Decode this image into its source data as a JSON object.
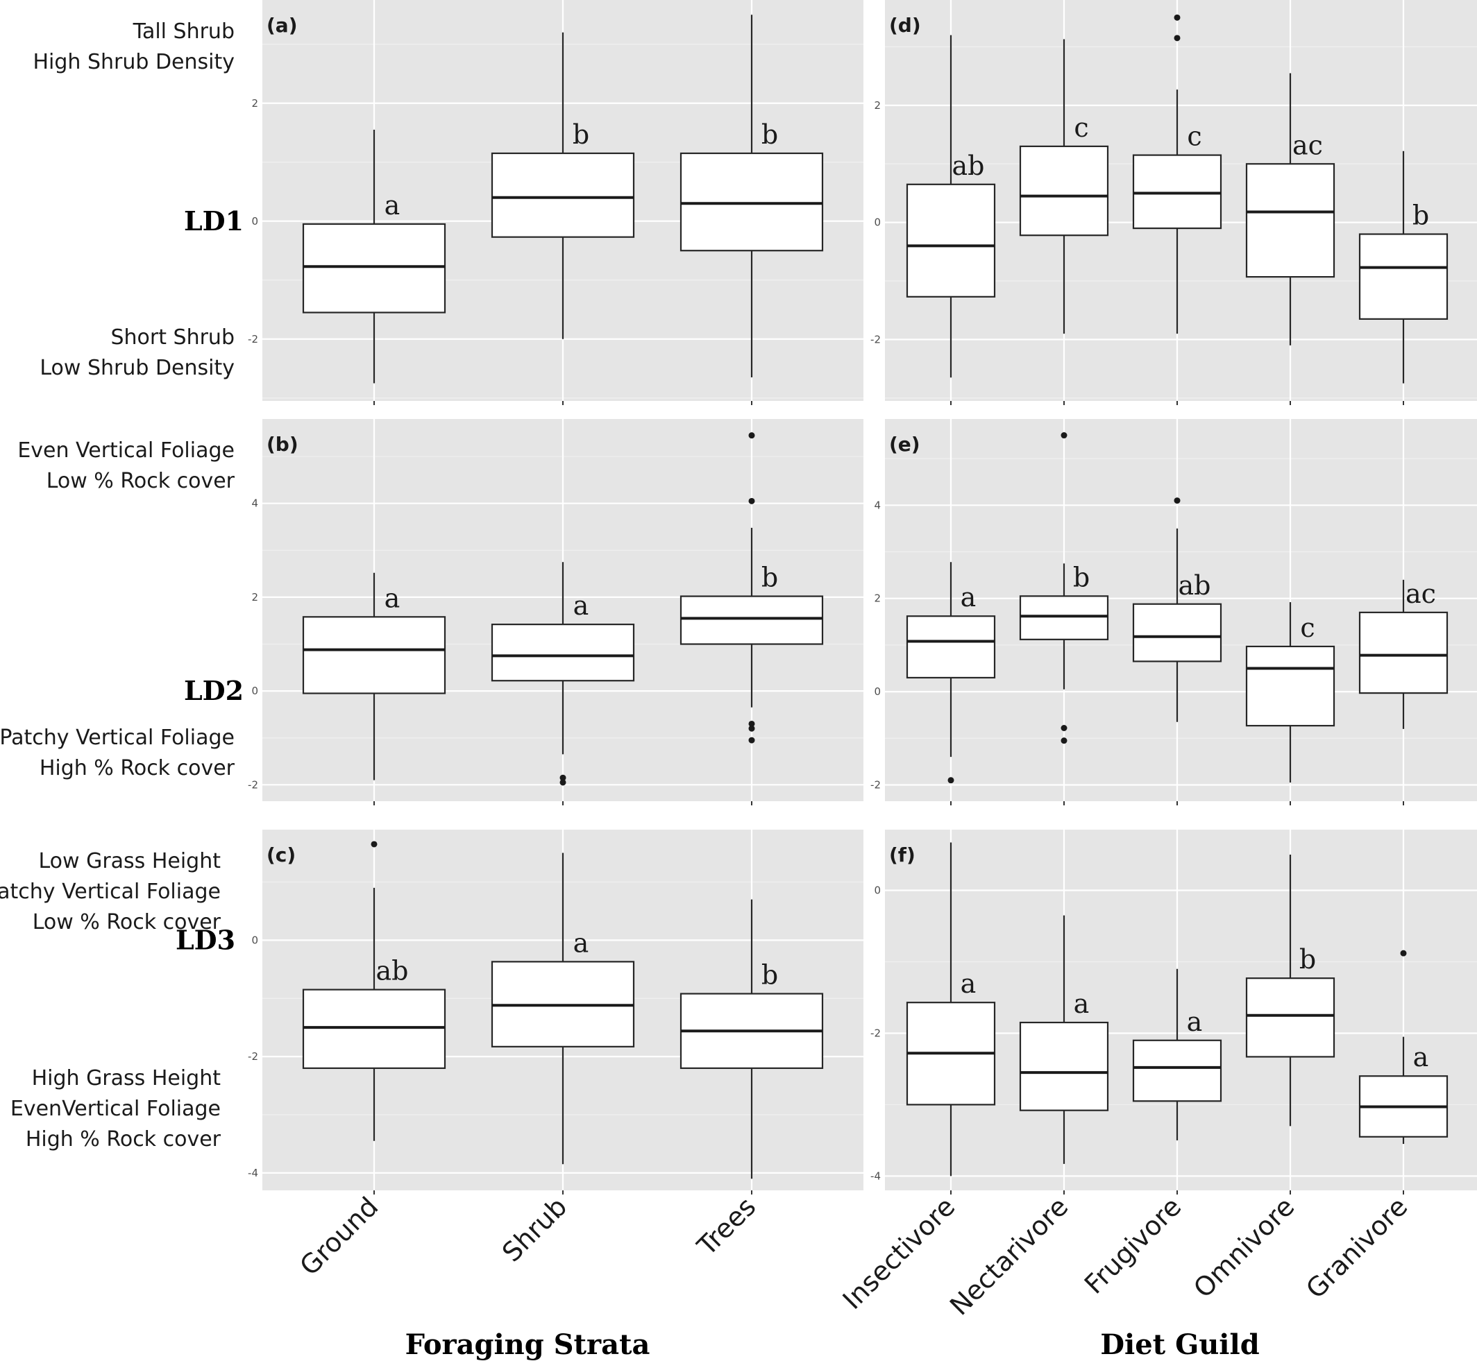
{
  "chart_data": [
    {
      "type": "box",
      "panel": "(a)",
      "row_label": "LD1",
      "xlabel": "Foraging Strata",
      "ylim": [
        -3.05,
        3.75
      ],
      "yticks": [
        2,
        0,
        -2
      ],
      "ytick_labels": [
        "2",
        "0",
        "-2"
      ],
      "descriptor_high": [
        "Tall Shrub",
        "High Shrub Density"
      ],
      "descriptor_low": [
        "Short Shrub",
        "Low Shrub Density"
      ],
      "categories": [
        "Ground",
        "Shrub",
        "Trees"
      ],
      "boxes": [
        {
          "category": "Ground",
          "whislo": -2.75,
          "q1": -1.55,
          "med": -0.77,
          "q3": -0.05,
          "whishi": 1.55,
          "outliers": [],
          "letter": "a"
        },
        {
          "category": "Shrub",
          "whislo": -2.0,
          "q1": -0.27,
          "med": 0.4,
          "q3": 1.15,
          "whishi": 3.2,
          "outliers": [],
          "letter": "b"
        },
        {
          "category": "Trees",
          "whislo": -2.65,
          "q1": -0.5,
          "med": 0.3,
          "q3": 1.15,
          "whishi": 3.5,
          "outliers": [],
          "letter": "b"
        }
      ]
    },
    {
      "type": "box",
      "panel": "(b)",
      "row_label": "LD2",
      "xlabel": "Foraging Strata",
      "ylim": [
        -2.35,
        5.8
      ],
      "yticks": [
        4,
        2,
        0,
        -2
      ],
      "ytick_labels": [
        "4",
        "2",
        "0",
        "-2"
      ],
      "descriptor_high": [
        "Even Vertical Foliage",
        "Low % Rock cover"
      ],
      "descriptor_low": [
        "Patchy Vertical Foliage",
        "High % Rock cover"
      ],
      "categories": [
        "Ground",
        "Shrub",
        "Trees"
      ],
      "boxes": [
        {
          "category": "Ground",
          "whislo": -1.9,
          "q1": -0.05,
          "med": 0.88,
          "q3": 1.58,
          "whishi": 2.52,
          "outliers": [],
          "letter": "a"
        },
        {
          "category": "Shrub",
          "whislo": -1.35,
          "q1": 0.22,
          "med": 0.75,
          "q3": 1.42,
          "whishi": 2.75,
          "outliers": [
            -1.85,
            -1.95
          ],
          "letter": "a"
        },
        {
          "category": "Trees",
          "whislo": -0.35,
          "q1": 1.0,
          "med": 1.55,
          "q3": 2.02,
          "whishi": 3.48,
          "outliers": [
            5.45,
            4.05,
            -0.7,
            -0.8,
            -1.05
          ],
          "letter": "b"
        }
      ]
    },
    {
      "type": "box",
      "panel": "(c)",
      "row_label": "LD3",
      "xlabel": "Foraging Strata",
      "ylim": [
        -4.3,
        1.9
      ],
      "yticks": [
        0,
        -2,
        -4
      ],
      "ytick_labels": [
        "0",
        "-2",
        "-4"
      ],
      "descriptor_high": [
        "Low Grass Height",
        "Patchy Vertical Foliage",
        "Low % Rock cover"
      ],
      "descriptor_low": [
        "High Grass Height",
        "EvenVertical Foliage",
        "High % Rock cover"
      ],
      "categories": [
        "Ground",
        "Shrub",
        "Trees"
      ],
      "boxes": [
        {
          "category": "Ground",
          "whislo": -3.45,
          "q1": -2.2,
          "med": -1.5,
          "q3": -0.85,
          "whishi": 0.9,
          "outliers": [
            1.65
          ],
          "letter": "ab"
        },
        {
          "category": "Shrub",
          "whislo": -3.85,
          "q1": -1.83,
          "med": -1.12,
          "q3": -0.37,
          "whishi": 1.5,
          "outliers": [],
          "letter": "a"
        },
        {
          "category": "Trees",
          "whislo": -4.1,
          "q1": -2.2,
          "med": -1.56,
          "q3": -0.92,
          "whishi": 0.7,
          "outliers": [],
          "letter": "b"
        }
      ]
    },
    {
      "type": "box",
      "panel": "(d)",
      "xlabel": "Diet Guild",
      "ylim": [
        -3.05,
        3.8
      ],
      "yticks": [
        2,
        0,
        -2
      ],
      "ytick_labels": [
        "2",
        "0",
        "-2"
      ],
      "categories": [
        "Insectivore",
        "Nectarivore",
        "Frugivore",
        "Omnivore",
        "Granivore"
      ],
      "boxes": [
        {
          "category": "Insectivore",
          "whislo": -2.65,
          "q1": -1.27,
          "med": -0.4,
          "q3": 0.65,
          "whishi": 3.2,
          "outliers": [],
          "letter": "ab"
        },
        {
          "category": "Nectarivore",
          "whislo": -1.9,
          "q1": -0.22,
          "med": 0.45,
          "q3": 1.3,
          "whishi": 3.13,
          "outliers": [],
          "letter": "c"
        },
        {
          "category": "Frugivore",
          "whislo": -1.9,
          "q1": -0.1,
          "med": 0.5,
          "q3": 1.15,
          "whishi": 2.27,
          "outliers": [
            3.5,
            3.15
          ],
          "letter": "c"
        },
        {
          "category": "Omnivore",
          "whislo": -2.1,
          "q1": -0.93,
          "med": 0.18,
          "q3": 1.0,
          "whishi": 2.55,
          "outliers": [],
          "letter": "ac"
        },
        {
          "category": "Granivore",
          "whislo": -2.75,
          "q1": -1.65,
          "med": -0.77,
          "q3": -0.2,
          "whishi": 1.22,
          "outliers": [],
          "letter": "b"
        }
      ]
    },
    {
      "type": "box",
      "panel": "(e)",
      "xlabel": "Diet Guild",
      "ylim": [
        -2.35,
        5.85
      ],
      "yticks": [
        4,
        2,
        0,
        -2
      ],
      "ytick_labels": [
        "4",
        "2",
        "0",
        "-2"
      ],
      "categories": [
        "Insectivore",
        "Nectarivore",
        "Frugivore",
        "Omnivore",
        "Granivore"
      ],
      "boxes": [
        {
          "category": "Insectivore",
          "whislo": -1.4,
          "q1": 0.3,
          "med": 1.08,
          "q3": 1.62,
          "whishi": 2.78,
          "outliers": [
            -1.9
          ],
          "letter": "a"
        },
        {
          "category": "Nectarivore",
          "whislo": 0.05,
          "q1": 1.12,
          "med": 1.62,
          "q3": 2.05,
          "whishi": 2.75,
          "outliers": [
            5.5,
            -0.78,
            -1.05
          ],
          "letter": "b"
        },
        {
          "category": "Frugivore",
          "whislo": -0.65,
          "q1": 0.65,
          "med": 1.18,
          "q3": 1.88,
          "whishi": 3.5,
          "outliers": [
            4.1
          ],
          "letter": "ab"
        },
        {
          "category": "Omnivore",
          "whislo": -1.95,
          "q1": -0.73,
          "med": 0.5,
          "q3": 0.97,
          "whishi": 1.92,
          "outliers": [],
          "letter": "c"
        },
        {
          "category": "Granivore",
          "whislo": -0.8,
          "q1": -0.03,
          "med": 0.78,
          "q3": 1.7,
          "whishi": 2.4,
          "outliers": [],
          "letter": "ac"
        }
      ]
    },
    {
      "type": "box",
      "panel": "(f)",
      "xlabel": "Diet Guild",
      "ylim": [
        -4.2,
        0.85
      ],
      "yticks": [
        0,
        -2,
        -4
      ],
      "ytick_labels": [
        "0",
        "-2",
        "-4"
      ],
      "categories": [
        "Insectivore",
        "Nectarivore",
        "Frugivore",
        "Omnivore",
        "Granivore"
      ],
      "boxes": [
        {
          "category": "Insectivore",
          "whislo": -4.0,
          "q1": -3.0,
          "med": -2.28,
          "q3": -1.57,
          "whishi": 0.67,
          "outliers": [],
          "letter": "a"
        },
        {
          "category": "Nectarivore",
          "whislo": -3.83,
          "q1": -3.08,
          "med": -2.55,
          "q3": -1.85,
          "whishi": -0.35,
          "outliers": [],
          "letter": "a"
        },
        {
          "category": "Frugivore",
          "whislo": -3.5,
          "q1": -2.95,
          "med": -2.48,
          "q3": -2.1,
          "whishi": -1.1,
          "outliers": [],
          "letter": "a"
        },
        {
          "category": "Omnivore",
          "whislo": -3.3,
          "q1": -2.33,
          "med": -1.75,
          "q3": -1.23,
          "whishi": 0.5,
          "outliers": [],
          "letter": "b"
        },
        {
          "category": "Granivore",
          "whislo": -3.55,
          "q1": -3.45,
          "med": -3.03,
          "q3": -2.6,
          "whishi": -2.05,
          "outliers": [
            -0.88
          ],
          "letter": "a"
        }
      ]
    }
  ]
}
